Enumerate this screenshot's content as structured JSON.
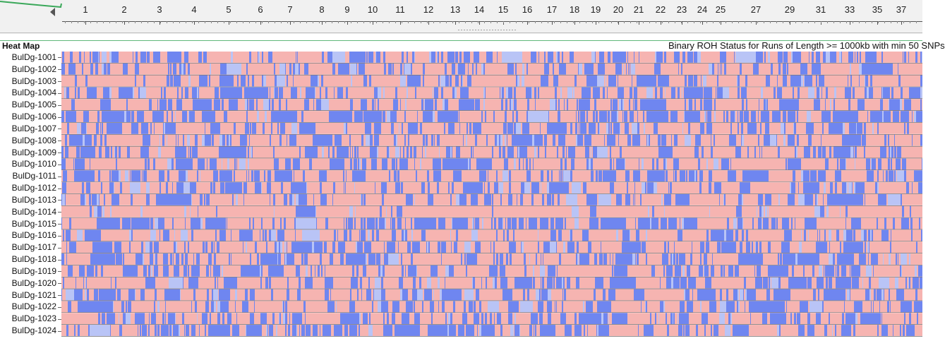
{
  "panel": {
    "title": "Heat Map"
  },
  "chart_data": {
    "type": "heatmap",
    "title": "Binary ROH Status for Runs of Length >= 1000kb with min 50 SNPs",
    "x_axis": {
      "label": "",
      "tick_labels": [
        "1",
        "2",
        "3",
        "4",
        "5",
        "6",
        "7",
        "8",
        "9",
        "10",
        "11",
        "12",
        "13",
        "14",
        "15",
        "16",
        "17",
        "18",
        "19",
        "20",
        "21",
        "22",
        "23",
        "24",
        "25",
        "27",
        "29",
        "31",
        "33",
        "35",
        "37"
      ]
    },
    "rows": [
      "BulDg-1001",
      "BulDg-1002",
      "BulDg-1003",
      "BulDg-1004",
      "BulDg-1005",
      "BulDg-1006",
      "BulDg-1007",
      "BulDg-1008",
      "BulDg-1009",
      "BulDg-1010",
      "BulDg-1011",
      "BulDg-1012",
      "BulDg-1013",
      "BulDg-1014",
      "BulDg-1015",
      "BulDg-1016",
      "BulDg-1017",
      "BulDg-1018",
      "BulDg-1019",
      "BulDg-1020",
      "BulDg-1021",
      "BulDg-1022",
      "BulDg-1023",
      "BulDg-1024"
    ],
    "row_roh_fraction": [
      0.42,
      0.3,
      0.36,
      0.36,
      0.3,
      0.4,
      0.42,
      0.34,
      0.36,
      0.34,
      0.4,
      0.22,
      0.34,
      0.08,
      0.4,
      0.32,
      0.34,
      0.4,
      0.36,
      0.38,
      0.3,
      0.34,
      0.32,
      0.42
    ],
    "values": "binary per SNP column: 1 = ROH (blue), 0 = non-ROH (pink)",
    "colors": {
      "roh": "#6f86f0",
      "non_roh": "#f6b4b1",
      "roh_light": "#b9c4f6"
    },
    "legend": "none"
  }
}
